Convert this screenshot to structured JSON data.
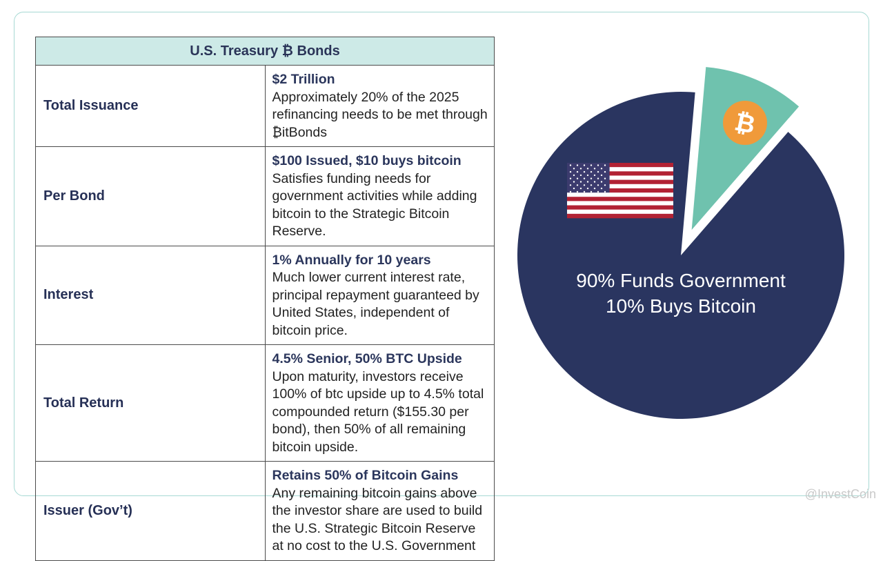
{
  "table": {
    "title": "U.S. Treasury ₿ Bonds",
    "rows": [
      {
        "label": "Total Issuance",
        "head": "$2 Trillion",
        "body": "Approximately 20% of the 2025 refinancing needs to be met through ₿itBonds"
      },
      {
        "label": "Per Bond",
        "head": "$100 Issued, $10 buys bitcoin",
        "body": "Satisfies funding needs for government activities while adding bitcoin to the Strategic Bitcoin Reserve."
      },
      {
        "label": "Interest",
        "head": "1% Annually for 10 years",
        "body": "Much lower current interest rate, principal repayment guaranteed by United States, independent of bitcoin price."
      },
      {
        "label": "Total Return",
        "head": "4.5% Senior, 50% BTC Upside",
        "body": "Upon maturity, investors receive 100% of btc upside up to 4.5% total compounded return ($155.30 per bond), then 50% of all remaining bitcoin upside."
      },
      {
        "label": "Issuer (Gov’t)",
        "head": "Retains 50% of Bitcoin Gains",
        "body": "Any remaining bitcoin gains above the investor share are used to build the U.S. Strategic Bitcoin Reserve at no cost to the U.S. Government"
      }
    ]
  },
  "chart_data": {
    "type": "pie",
    "categories": [
      "Funds Government",
      "Buys Bitcoin"
    ],
    "values": [
      90,
      10
    ],
    "labels": [
      "90% Funds Government",
      "10% Buys Bitcoin"
    ],
    "colors": [
      "#2a3560",
      "#6fc2ae"
    ],
    "exploded": "Buys Bitcoin",
    "icons": [
      "us-flag-icon",
      "bitcoin-icon"
    ]
  },
  "watermark": "@InvestCoin"
}
